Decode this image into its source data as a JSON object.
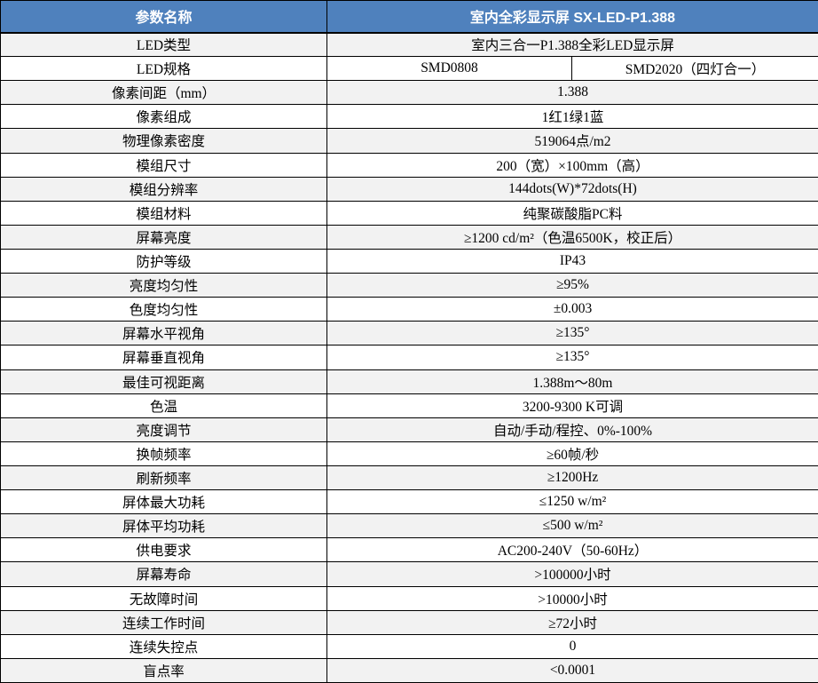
{
  "colors": {
    "header_bg": "#4F81BD",
    "header_text": "#FFFFFF",
    "alt_row_bg": "#F2F2F2",
    "row_bg": "#FFFFFF",
    "border": "#000000"
  },
  "table": {
    "header": {
      "param": "参数名称",
      "product": "室内全彩显示屏 SX-LED-P1.388"
    },
    "rows": [
      {
        "label": "LED类型",
        "value": "室内三合一P1.388全彩LED显示屏"
      },
      {
        "label": "LED规格",
        "value": "SMD0808",
        "value2": "SMD2020（四灯合一）"
      },
      {
        "label": "像素间距（mm）",
        "value": "1.388"
      },
      {
        "label": "像素组成",
        "value": "1红1绿1蓝"
      },
      {
        "label": "物理像素密度",
        "value": "519064点/m2"
      },
      {
        "label": "模组尺寸",
        "value": "200（宽）×100mm（高）"
      },
      {
        "label": "模组分辨率",
        "value": "144dots(W)*72dots(H)"
      },
      {
        "label": "模组材料",
        "value": "纯聚碳酸脂PC料"
      },
      {
        "label": "屏幕亮度",
        "value": "≥1200 cd/m²（色温6500K，校正后）"
      },
      {
        "label": "防护等级",
        "value": "IP43"
      },
      {
        "label": "亮度均匀性",
        "value": "≥95%"
      },
      {
        "label": "色度均匀性",
        "value": "±0.003"
      },
      {
        "label": "屏幕水平视角",
        "value": "≥135°"
      },
      {
        "label": "屏幕垂直视角",
        "value": "≥135°"
      },
      {
        "label": "最佳可视距离",
        "value": "1.388m～80m"
      },
      {
        "label": "色温",
        "value": "3200-9300 K可调"
      },
      {
        "label": "亮度调节",
        "value": "自动/手动/程控、0%-100%"
      },
      {
        "label": "换帧频率",
        "value": "≥60帧/秒"
      },
      {
        "label": "刷新频率",
        "value": "≥1200Hz"
      },
      {
        "label": "屏体最大功耗",
        "value": "≤1250 w/m²"
      },
      {
        "label": "屏体平均功耗",
        "value": "≤500 w/m²"
      },
      {
        "label": "供电要求",
        "value": "AC200-240V（50-60Hz）"
      },
      {
        "label": "屏幕寿命",
        "value": ">100000小时"
      },
      {
        "label": "无故障时间",
        "value": ">10000小时"
      },
      {
        "label": "连续工作时间",
        "value": "≥72小时"
      },
      {
        "label": "连续失控点",
        "value": "0"
      },
      {
        "label": "盲点率",
        "value": "<0.0001"
      }
    ]
  }
}
